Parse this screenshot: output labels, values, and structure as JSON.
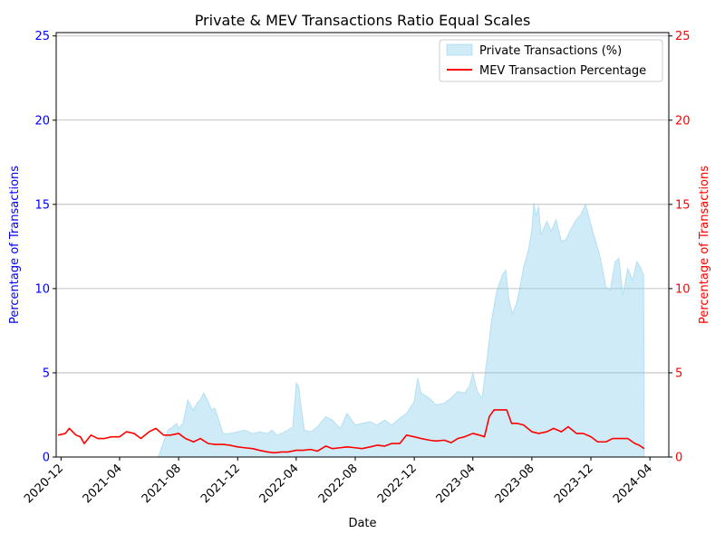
{
  "chart_data": {
    "type": "area",
    "title": "Private & MEV Transactions Ratio Equal Scales",
    "xlabel": "Date",
    "ylabel_left": "Percentage of Transactions",
    "ylabel_right": "Percentage of Transactions",
    "ylim": [
      0,
      25.2
    ],
    "y_ticks": [
      0,
      5,
      10,
      15,
      20,
      25
    ],
    "x_ticks": [
      "2020-12",
      "2021-04",
      "2021-08",
      "2021-12",
      "2022-04",
      "2022-08",
      "2022-12",
      "2023-04",
      "2023-08",
      "2023-12",
      "2024-04"
    ],
    "x_range": [
      "2020-11-21",
      "2024-05-10"
    ],
    "grid": "y-major",
    "legend_position": "top-right",
    "colors": {
      "private_fill": "#87ceeb",
      "private_edge": "#87ceeb",
      "mev_line": "#ff0000",
      "left_axis": "#0000ff",
      "right_axis": "#ff0000",
      "grid": "#b0b0b0"
    },
    "series": [
      {
        "name": "Private Transactions (%)",
        "kind": "area",
        "points": [
          [
            "2021-06-20",
            0.0
          ],
          [
            "2021-07-01",
            0.9
          ],
          [
            "2021-07-10",
            1.6
          ],
          [
            "2021-07-20",
            1.8
          ],
          [
            "2021-07-28",
            2.0
          ],
          [
            "2021-08-01",
            1.7
          ],
          [
            "2021-08-10",
            2.0
          ],
          [
            "2021-08-20",
            3.4
          ],
          [
            "2021-08-27",
            3.0
          ],
          [
            "2021-09-01",
            2.8
          ],
          [
            "2021-09-08",
            3.2
          ],
          [
            "2021-09-15",
            3.4
          ],
          [
            "2021-09-22",
            3.8
          ],
          [
            "2021-10-01",
            3.3
          ],
          [
            "2021-10-08",
            2.8
          ],
          [
            "2021-10-15",
            2.9
          ],
          [
            "2021-10-22",
            2.3
          ],
          [
            "2021-11-01",
            1.4
          ],
          [
            "2021-11-15",
            1.4
          ],
          [
            "2021-12-01",
            1.5
          ],
          [
            "2021-12-15",
            1.6
          ],
          [
            "2022-01-01",
            1.4
          ],
          [
            "2022-01-15",
            1.5
          ],
          [
            "2022-02-01",
            1.4
          ],
          [
            "2022-02-10",
            1.6
          ],
          [
            "2022-02-20",
            1.3
          ],
          [
            "2022-03-01",
            1.4
          ],
          [
            "2022-03-15",
            1.6
          ],
          [
            "2022-03-25",
            1.8
          ],
          [
            "2022-04-01",
            4.4
          ],
          [
            "2022-04-06",
            4.2
          ],
          [
            "2022-04-12",
            2.8
          ],
          [
            "2022-04-18",
            1.6
          ],
          [
            "2022-05-01",
            1.5
          ],
          [
            "2022-05-15",
            1.8
          ],
          [
            "2022-06-01",
            2.4
          ],
          [
            "2022-06-15",
            2.2
          ],
          [
            "2022-07-01",
            1.7
          ],
          [
            "2022-07-15",
            2.6
          ],
          [
            "2022-08-01",
            1.9
          ],
          [
            "2022-08-15",
            2.0
          ],
          [
            "2022-09-01",
            2.1
          ],
          [
            "2022-09-15",
            1.9
          ],
          [
            "2022-10-01",
            2.2
          ],
          [
            "2022-10-15",
            1.9
          ],
          [
            "2022-11-01",
            2.3
          ],
          [
            "2022-11-15",
            2.6
          ],
          [
            "2022-12-01",
            3.3
          ],
          [
            "2022-12-08",
            4.7
          ],
          [
            "2022-12-15",
            3.8
          ],
          [
            "2023-01-01",
            3.5
          ],
          [
            "2023-01-15",
            3.1
          ],
          [
            "2023-02-01",
            3.2
          ],
          [
            "2023-02-15",
            3.5
          ],
          [
            "2023-03-01",
            3.9
          ],
          [
            "2023-03-15",
            3.8
          ],
          [
            "2023-03-25",
            4.2
          ],
          [
            "2023-04-01",
            5.0
          ],
          [
            "2023-04-10",
            3.9
          ],
          [
            "2023-04-20",
            3.5
          ],
          [
            "2023-05-01",
            6.0
          ],
          [
            "2023-05-10",
            8.2
          ],
          [
            "2023-05-20",
            9.8
          ],
          [
            "2023-06-01",
            10.8
          ],
          [
            "2023-06-08",
            11.1
          ],
          [
            "2023-06-15",
            9.3
          ],
          [
            "2023-06-22",
            8.5
          ],
          [
            "2023-07-01",
            9.2
          ],
          [
            "2023-07-08",
            10.2
          ],
          [
            "2023-07-15",
            11.3
          ],
          [
            "2023-07-25",
            12.3
          ],
          [
            "2023-08-01",
            13.5
          ],
          [
            "2023-08-05",
            15.1
          ],
          [
            "2023-08-10",
            14.3
          ],
          [
            "2023-08-15",
            14.9
          ],
          [
            "2023-08-20",
            13.2
          ],
          [
            "2023-09-01",
            14.0
          ],
          [
            "2023-09-10",
            13.4
          ],
          [
            "2023-09-20",
            14.1
          ],
          [
            "2023-10-01",
            12.8
          ],
          [
            "2023-10-10",
            12.9
          ],
          [
            "2023-10-20",
            13.5
          ],
          [
            "2023-11-01",
            14.1
          ],
          [
            "2023-11-10",
            14.4
          ],
          [
            "2023-11-20",
            15.0
          ],
          [
            "2023-12-01",
            13.8
          ],
          [
            "2023-12-10",
            12.9
          ],
          [
            "2023-12-20",
            11.9
          ],
          [
            "2024-01-01",
            10.1
          ],
          [
            "2024-01-10",
            9.9
          ],
          [
            "2024-01-20",
            11.6
          ],
          [
            "2024-01-28",
            11.8
          ],
          [
            "2024-02-05",
            9.6
          ],
          [
            "2024-02-15",
            11.2
          ],
          [
            "2024-02-25",
            10.5
          ],
          [
            "2024-03-05",
            11.6
          ],
          [
            "2024-03-12",
            11.3
          ],
          [
            "2024-03-19",
            10.8
          ],
          [
            "2024-03-20",
            0.0
          ]
        ]
      },
      {
        "name": "MEV Transaction Percentage",
        "kind": "line",
        "points": [
          [
            "2020-11-25",
            1.3
          ],
          [
            "2020-12-10",
            1.4
          ],
          [
            "2020-12-18",
            1.7
          ],
          [
            "2021-01-01",
            1.3
          ],
          [
            "2021-01-10",
            1.2
          ],
          [
            "2021-01-18",
            0.8
          ],
          [
            "2021-02-01",
            1.3
          ],
          [
            "2021-02-15",
            1.1
          ],
          [
            "2021-03-01",
            1.1
          ],
          [
            "2021-03-15",
            1.2
          ],
          [
            "2021-04-01",
            1.2
          ],
          [
            "2021-04-15",
            1.5
          ],
          [
            "2021-05-01",
            1.4
          ],
          [
            "2021-05-15",
            1.1
          ],
          [
            "2021-06-01",
            1.5
          ],
          [
            "2021-06-15",
            1.7
          ],
          [
            "2021-07-01",
            1.3
          ],
          [
            "2021-07-15",
            1.3
          ],
          [
            "2021-08-01",
            1.4
          ],
          [
            "2021-08-15",
            1.1
          ],
          [
            "2021-09-01",
            0.9
          ],
          [
            "2021-09-15",
            1.1
          ],
          [
            "2021-10-01",
            0.8
          ],
          [
            "2021-10-15",
            0.75
          ],
          [
            "2021-11-01",
            0.75
          ],
          [
            "2021-11-15",
            0.7
          ],
          [
            "2021-12-01",
            0.6
          ],
          [
            "2021-12-15",
            0.55
          ],
          [
            "2022-01-01",
            0.5
          ],
          [
            "2022-01-15",
            0.4
          ],
          [
            "2022-02-01",
            0.3
          ],
          [
            "2022-02-15",
            0.25
          ],
          [
            "2022-03-01",
            0.3
          ],
          [
            "2022-03-15",
            0.3
          ],
          [
            "2022-04-01",
            0.4
          ],
          [
            "2022-04-15",
            0.4
          ],
          [
            "2022-05-01",
            0.45
          ],
          [
            "2022-05-15",
            0.35
          ],
          [
            "2022-06-01",
            0.65
          ],
          [
            "2022-06-15",
            0.5
          ],
          [
            "2022-07-01",
            0.55
          ],
          [
            "2022-07-15",
            0.6
          ],
          [
            "2022-08-01",
            0.55
          ],
          [
            "2022-08-15",
            0.5
          ],
          [
            "2022-09-01",
            0.6
          ],
          [
            "2022-09-15",
            0.7
          ],
          [
            "2022-10-01",
            0.65
          ],
          [
            "2022-10-15",
            0.8
          ],
          [
            "2022-11-01",
            0.8
          ],
          [
            "2022-11-15",
            1.3
          ],
          [
            "2022-12-01",
            1.2
          ],
          [
            "2022-12-15",
            1.1
          ],
          [
            "2023-01-01",
            1.0
          ],
          [
            "2023-01-15",
            0.95
          ],
          [
            "2023-02-01",
            1.0
          ],
          [
            "2023-02-15",
            0.85
          ],
          [
            "2023-03-01",
            1.1
          ],
          [
            "2023-03-15",
            1.2
          ],
          [
            "2023-04-01",
            1.4
          ],
          [
            "2023-04-15",
            1.3
          ],
          [
            "2023-04-25",
            1.2
          ],
          [
            "2023-05-05",
            2.4
          ],
          [
            "2023-05-15",
            2.8
          ],
          [
            "2023-06-01",
            2.8
          ],
          [
            "2023-06-10",
            2.8
          ],
          [
            "2023-06-20",
            2.0
          ],
          [
            "2023-07-01",
            2.0
          ],
          [
            "2023-07-15",
            1.9
          ],
          [
            "2023-08-01",
            1.5
          ],
          [
            "2023-08-15",
            1.4
          ],
          [
            "2023-09-01",
            1.5
          ],
          [
            "2023-09-15",
            1.7
          ],
          [
            "2023-10-01",
            1.5
          ],
          [
            "2023-10-15",
            1.8
          ],
          [
            "2023-11-01",
            1.4
          ],
          [
            "2023-11-15",
            1.4
          ],
          [
            "2023-12-01",
            1.2
          ],
          [
            "2023-12-15",
            0.9
          ],
          [
            "2024-01-01",
            0.9
          ],
          [
            "2024-01-15",
            1.1
          ],
          [
            "2024-02-01",
            1.1
          ],
          [
            "2024-02-15",
            1.1
          ],
          [
            "2024-03-01",
            0.8
          ],
          [
            "2024-03-10",
            0.7
          ],
          [
            "2024-03-20",
            0.5
          ]
        ]
      }
    ]
  }
}
